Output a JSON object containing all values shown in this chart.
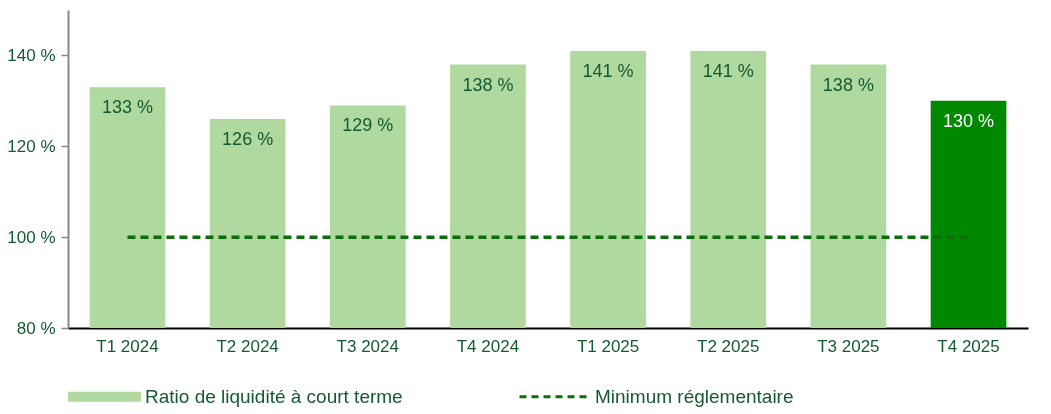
{
  "chart_data": {
    "type": "bar",
    "categories": [
      "T1 2024",
      "T2 2024",
      "T3 2024",
      "T4 2024",
      "T1 2025",
      "T2 2025",
      "T3 2025",
      "T4 2025"
    ],
    "series": [
      {
        "name": "Ratio de liquidité à court terme",
        "color": "#b0d9a0",
        "colors": [
          "#b0d9a0",
          "#b0d9a0",
          "#b0d9a0",
          "#b0d9a0",
          "#b0d9a0",
          "#b0d9a0",
          "#b0d9a0",
          "#008800"
        ],
        "values": [
          133,
          126,
          129,
          138,
          141,
          141,
          138,
          130
        ],
        "value_labels": [
          "133 %",
          "126 %",
          "129 %",
          "138 %",
          "141 %",
          "141 %",
          "138 %",
          "130 %"
        ]
      },
      {
        "name": "Minimum réglementaire",
        "type": "line",
        "color": "#0b6e0b",
        "line_style": "dashed",
        "values": [
          100,
          100,
          100,
          100,
          100,
          100,
          100,
          100
        ]
      }
    ],
    "ylim": [
      80,
      150
    ],
    "yticks": [
      {
        "value": 80,
        "label": "80 %"
      },
      {
        "value": 100,
        "label": "100 %"
      },
      {
        "value": 120,
        "label": "120 %"
      },
      {
        "value": 140,
        "label": "140 %"
      }
    ],
    "grid": false,
    "legend": "bottom"
  }
}
